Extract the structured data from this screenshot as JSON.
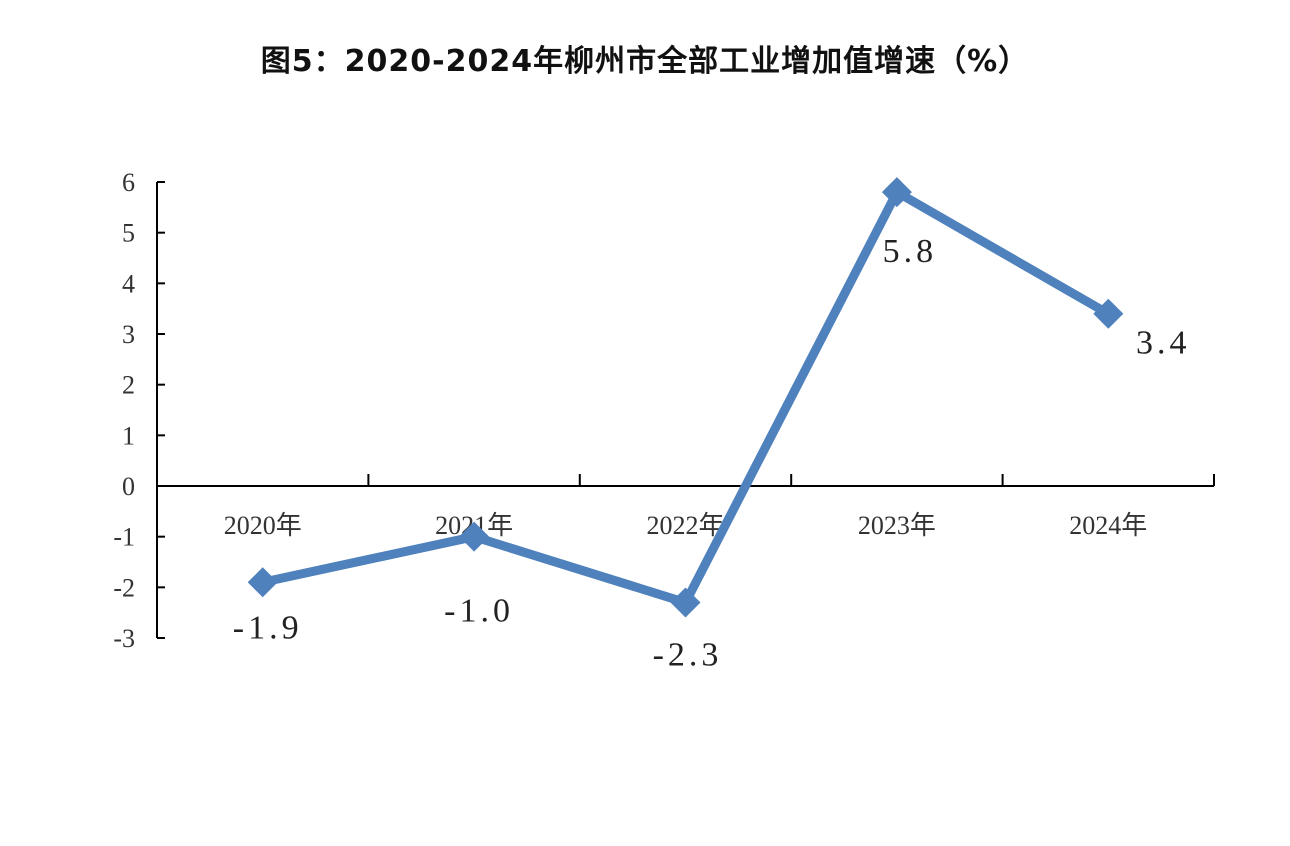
{
  "chart_data": {
    "type": "line",
    "title": "图5：2020-2024年柳州市全部工业增加值增速（%）",
    "categories": [
      "2020年",
      "2021年",
      "2022年",
      "2023年",
      "2024年"
    ],
    "series": [
      {
        "values": [
          -1.9,
          -1.0,
          -2.3,
          5.8,
          3.4
        ],
        "color": "#4f81bd"
      }
    ],
    "data_labels": [
      "-1.9",
      "-1.0",
      "-2.3",
      "5.8",
      "3.4"
    ],
    "yticks": [
      6,
      5,
      4,
      3,
      2,
      1,
      0,
      -1,
      -2,
      -3
    ],
    "ylim": [
      -3,
      6
    ],
    "grid": false,
    "legend": "none",
    "xlabel": "",
    "ylabel": ""
  }
}
